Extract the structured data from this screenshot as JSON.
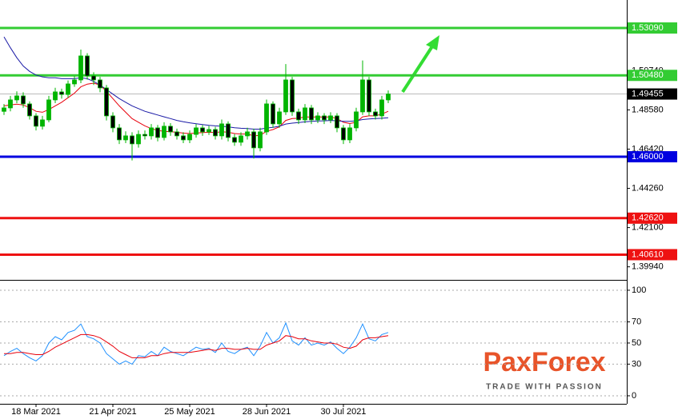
{
  "chart_data": [
    {
      "type": "candlestick",
      "categories": [
        null,
        null,
        null,
        null,
        null,
        "18 Mar 2021",
        null,
        null,
        null,
        null,
        null,
        null,
        null,
        null,
        null,
        null,
        null,
        "21 Apr 2021",
        null,
        null,
        null,
        null,
        null,
        null,
        null,
        null,
        null,
        null,
        null,
        "25 May 2021",
        null,
        null,
        null,
        null,
        null,
        null,
        null,
        null,
        null,
        null,
        null,
        "28 Jun 2021",
        null,
        null,
        null,
        null,
        null,
        null,
        null,
        null,
        null,
        null,
        null,
        "30 Jul 2021",
        null,
        null,
        null,
        null,
        null,
        null,
        null
      ],
      "open": [
        1.485,
        1.4869,
        1.4913,
        1.4935,
        1.4891,
        1.4825,
        1.4768,
        1.4803,
        1.4913,
        1.4957,
        1.4943,
        1.5001,
        1.5023,
        1.5155,
        1.5045,
        1.5023,
        1.4979,
        1.4825,
        1.4759,
        1.4693,
        1.4715,
        1.4671,
        1.4723,
        1.4715,
        1.4759,
        1.4706,
        1.4768,
        1.4737,
        1.4715,
        1.4693,
        1.4723,
        1.4759,
        1.4737,
        1.475,
        1.4715,
        1.4781,
        1.4706,
        1.468,
        1.4715,
        1.4737,
        1.4649,
        1.4737,
        1.4891,
        1.4781,
        1.4847,
        1.5023,
        1.4847,
        1.4803,
        1.4869,
        1.4803,
        1.4825,
        1.4803,
        1.4825,
        1.4759,
        1.4693,
        1.4759,
        1.4847,
        1.5023,
        1.4847,
        1.4825,
        1.4913
      ],
      "high": [
        1.489,
        1.4935,
        1.496,
        1.4955,
        1.4905,
        1.484,
        1.4825,
        1.4935,
        1.498,
        1.4975,
        1.502,
        1.5045,
        1.519,
        1.517,
        1.5065,
        1.504,
        1.4995,
        1.4845,
        1.478,
        1.474,
        1.4735,
        1.4745,
        1.4745,
        1.478,
        1.4775,
        1.479,
        1.4785,
        1.4755,
        1.4735,
        1.4745,
        1.478,
        1.4775,
        1.477,
        1.4765,
        1.4805,
        1.4795,
        1.4725,
        1.4735,
        1.476,
        1.4755,
        1.476,
        1.4915,
        1.4905,
        1.487,
        1.511,
        1.504,
        1.4865,
        1.489,
        1.4885,
        1.4845,
        1.484,
        1.4845,
        1.484,
        1.4775,
        1.478,
        1.487,
        1.513,
        1.504,
        1.4865,
        1.4935,
        1.4965
      ],
      "low": [
        1.483,
        1.485,
        1.4895,
        1.487,
        1.4805,
        1.4745,
        1.475,
        1.479,
        1.4895,
        1.492,
        1.4925,
        1.4985,
        1.5005,
        1.5025,
        1.4995,
        1.4955,
        1.48,
        1.4735,
        1.467,
        1.4675,
        1.458,
        1.465,
        1.4695,
        1.4695,
        1.4685,
        1.469,
        1.4715,
        1.4695,
        1.4675,
        1.4675,
        1.4705,
        1.4715,
        1.472,
        1.4695,
        1.4695,
        1.4685,
        1.466,
        1.466,
        1.4695,
        1.459,
        1.463,
        1.472,
        1.476,
        1.476,
        1.483,
        1.4825,
        1.478,
        1.4785,
        1.478,
        1.4785,
        1.478,
        1.4785,
        1.4735,
        1.467,
        1.4675,
        1.474,
        1.483,
        1.4825,
        1.4805,
        1.4805,
        1.4895
      ],
      "close": [
        1.4869,
        1.4913,
        1.4935,
        1.4891,
        1.4825,
        1.4768,
        1.4803,
        1.4913,
        1.4957,
        1.4943,
        1.5001,
        1.5023,
        1.5155,
        1.5045,
        1.5023,
        1.4979,
        1.4825,
        1.4759,
        1.4693,
        1.4715,
        1.4671,
        1.4723,
        1.4715,
        1.4759,
        1.4706,
        1.4768,
        1.4737,
        1.4715,
        1.4693,
        1.4723,
        1.4759,
        1.4737,
        1.475,
        1.4715,
        1.4781,
        1.4706,
        1.468,
        1.4715,
        1.4737,
        1.4649,
        1.4737,
        1.4891,
        1.4781,
        1.4847,
        1.5023,
        1.4847,
        1.4803,
        1.4869,
        1.4803,
        1.4825,
        1.4803,
        1.4825,
        1.4759,
        1.4693,
        1.4759,
        1.4847,
        1.5023,
        1.4847,
        1.4825,
        1.4913,
        1.49455
      ],
      "up_color": "#00b400",
      "down_color": "#000000",
      "series": [
        {
          "color": "#e8000b",
          "values": [
            1.488,
            1.4885,
            1.489,
            1.4885,
            1.487,
            1.485,
            1.4845,
            1.486,
            1.488,
            1.49,
            1.4925,
            1.495,
            1.4985,
            1.5,
            1.5005,
            1.4995,
            1.496,
            1.492,
            1.488,
            1.4845,
            1.481,
            1.479,
            1.477,
            1.4755,
            1.4745,
            1.474,
            1.4738,
            1.4735,
            1.473,
            1.4728,
            1.473,
            1.4733,
            1.4735,
            1.4733,
            1.4738,
            1.4735,
            1.4728,
            1.4725,
            1.4725,
            1.4715,
            1.4718,
            1.474,
            1.475,
            1.4765,
            1.48,
            1.481,
            1.4812,
            1.482,
            1.4818,
            1.482,
            1.4818,
            1.482,
            1.481,
            1.479,
            1.4783,
            1.479,
            1.482,
            1.4825,
            1.4825,
            1.4835,
            1.485
          ]
        },
        {
          "color": "#1a1aa6",
          "values": [
            1.526,
            1.52,
            1.5145,
            1.51,
            1.507,
            1.505,
            1.504,
            1.5035,
            1.5035,
            1.503,
            1.503,
            1.503,
            1.5035,
            1.503,
            1.5015,
            1.4995,
            1.497,
            1.4945,
            1.492,
            1.49,
            1.488,
            1.4865,
            1.485,
            1.484,
            1.483,
            1.482,
            1.481,
            1.48,
            1.4793,
            1.4787,
            1.4782,
            1.4777,
            1.4773,
            1.477,
            1.4768,
            1.4765,
            1.476,
            1.4757,
            1.4755,
            1.4752,
            1.4752,
            1.4758,
            1.4762,
            1.4768,
            1.478,
            1.4785,
            1.4788,
            1.4792,
            1.4795,
            1.4797,
            1.4798,
            1.48,
            1.4798,
            1.4795,
            1.4795,
            1.4798,
            1.4805,
            1.4808,
            1.481,
            1.4812,
            1.4815
          ]
        }
      ],
      "ylim": [
        1.3931,
        1.5463
      ],
      "yticks": [
        {
          "value": 1.5074,
          "label": "1.50740"
        },
        {
          "value": 1.4858,
          "label": "1.48580"
        },
        {
          "value": 1.4642,
          "label": "1.46420"
        },
        {
          "value": 1.4426,
          "label": "1.44260"
        },
        {
          "value": 1.421,
          "label": "1.42100"
        },
        {
          "value": 1.3994,
          "label": "1.39940"
        }
      ],
      "levels": [
        {
          "value": 1.5309,
          "label": "1.53090",
          "color": "#33cc33"
        },
        {
          "value": 1.5048,
          "label": "1.50480",
          "color": "#33cc33"
        },
        {
          "value": 1.46,
          "label": "1.46000",
          "color": "#0000e0"
        },
        {
          "value": 1.4262,
          "label": "1.42620",
          "color": "#ee1111"
        },
        {
          "value": 1.4061,
          "label": "1.40610",
          "color": "#ee1111"
        }
      ],
      "last_price": {
        "value": 1.49455,
        "label": "1.49455",
        "color": "#000000"
      }
    },
    {
      "type": "line",
      "series": [
        {
          "color": "#1e90ff",
          "values": [
            38,
            42,
            45,
            40,
            36,
            33,
            38,
            50,
            56,
            53,
            60,
            62,
            68,
            56,
            54,
            50,
            40,
            35,
            30,
            33,
            30,
            38,
            37,
            42,
            38,
            46,
            42,
            40,
            38,
            42,
            46,
            44,
            45,
            41,
            50,
            42,
            40,
            44,
            46,
            38,
            47,
            60,
            50,
            55,
            69,
            52,
            48,
            55,
            48,
            50,
            48,
            51,
            45,
            40,
            46,
            55,
            68,
            54,
            52,
            58,
            60
          ]
        },
        {
          "color": "#e8000b",
          "values": [
            40,
            40,
            41,
            41,
            40,
            39,
            39,
            42,
            46,
            49,
            52,
            55,
            58,
            58,
            57,
            55,
            51,
            47,
            42,
            39,
            36,
            36,
            36,
            38,
            38,
            40,
            41,
            41,
            41,
            41,
            42,
            43,
            44,
            43,
            45,
            45,
            44,
            44,
            45,
            44,
            44,
            48,
            50,
            52,
            57,
            56,
            54,
            54,
            52,
            51,
            50,
            50,
            49,
            46,
            45,
            47,
            53,
            55,
            55,
            56,
            57
          ]
        }
      ],
      "ylim": [
        -7.6,
        108.3
      ],
      "yticks": [
        0,
        30,
        50,
        70,
        100
      ],
      "grid": true
    }
  ],
  "brand": {
    "name": "PaxForex",
    "tagline": "TRADE WITH PASSION"
  }
}
